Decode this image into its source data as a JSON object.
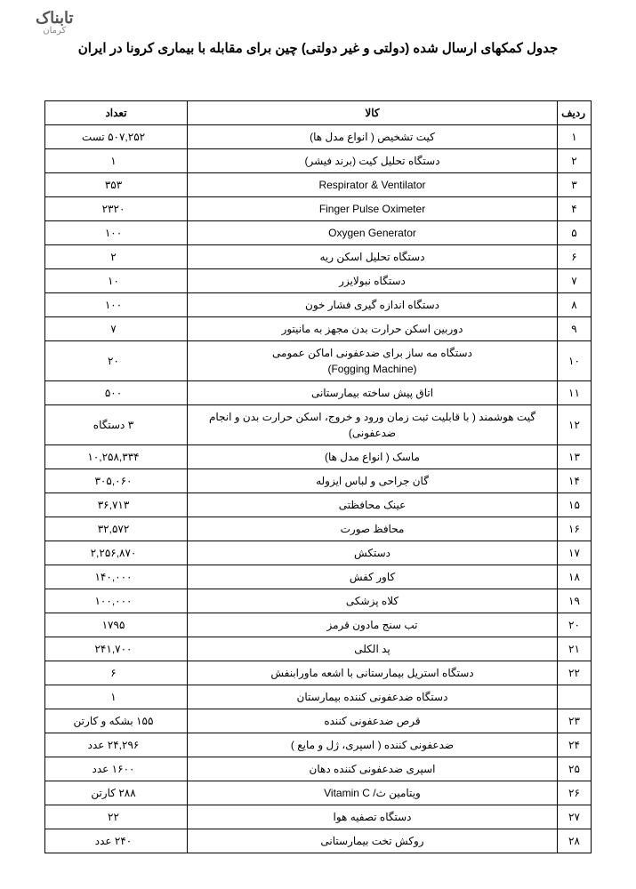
{
  "watermark_main": "تابناک",
  "watermark_sub": "کرمان",
  "title": "جدول کمکهای ارسال شده (دولتی و غیر دولتی) چین برای مقابله با بیماری کرونا در ایران",
  "columns": {
    "idx": "ردیف",
    "item": "کالا",
    "qty": "تعداد"
  },
  "rows": [
    {
      "n": "۱",
      "item": "کیت تشخیص ( انواع مدل ها)",
      "qty": "۵۰۷,۲۵۲ تست"
    },
    {
      "n": "۲",
      "item": "دستگاه تحلیل کیت (برند فیشر)",
      "qty": "۱"
    },
    {
      "n": "۳",
      "item": "Respirator & Ventilator",
      "qty": "۳۵۳"
    },
    {
      "n": "۴",
      "item": "Finger Pulse Oximeter",
      "qty": "۲۳۲۰"
    },
    {
      "n": "۵",
      "item": "Oxygen Generator",
      "qty": "۱۰۰"
    },
    {
      "n": "۶",
      "item": "دستگاه تحلیل اسکن ریه",
      "qty": "۲"
    },
    {
      "n": "۷",
      "item": "دستگاه نبولایزر",
      "qty": "۱۰"
    },
    {
      "n": "۸",
      "item": "دستگاه اندازه گیری فشار خون",
      "qty": "۱۰۰"
    },
    {
      "n": "۹",
      "item": "دوربین اسکن حرارت بدن مجهز به مانیتور",
      "qty": "۷"
    },
    {
      "n": "۱۰",
      "item": "دستگاه مه ساز برای ضدعفونی اماکن عمومی\n(Fogging Machine)",
      "qty": "۲۰"
    },
    {
      "n": "۱۱",
      "item": "اتاق پیش ساخته بیمارستانی",
      "qty": "۵۰۰"
    },
    {
      "n": "۱۲",
      "item": "گیت هوشمند ( با قابلیت ثبت زمان ورود و خروج، اسکن حرارت بدن و انجام ضدعفونی)",
      "qty": "۳ دستگاه"
    },
    {
      "n": "۱۳",
      "item": "ماسک ( انواع مدل ها)",
      "qty": "۱۰,۲۵۸,۳۳۴"
    },
    {
      "n": "۱۴",
      "item": "گان جراحی و لباس ایزوله",
      "qty": "۳۰۵,۰۶۰"
    },
    {
      "n": "۱۵",
      "item": "عینک محافظتی",
      "qty": "۳۶,۷۱۳"
    },
    {
      "n": "۱۶",
      "item": "محافظ صورت",
      "qty": "۳۲,۵۷۲"
    },
    {
      "n": "۱۷",
      "item": "دستکش",
      "qty": "۲,۲۵۶,۸۷۰"
    },
    {
      "n": "۱۸",
      "item": "کاور کفش",
      "qty": "۱۴۰,۰۰۰"
    },
    {
      "n": "۱۹",
      "item": "کلاه پزشکی",
      "qty": "۱۰۰,۰۰۰"
    },
    {
      "n": "۲۰",
      "item": "تب سنج مادون قرمز",
      "qty": "۱۷۹۵"
    },
    {
      "n": "۲۱",
      "item": "پد الکلی",
      "qty": "۲۴۱,۷۰۰"
    },
    {
      "n": "۲۲",
      "item": "دستگاه استریل بیمارستانی با اشعه ماورابنفش",
      "qty": "۶"
    },
    {
      "n": "",
      "item": "دستگاه ضدعفونی کننده بیمارستان",
      "qty": "۱"
    },
    {
      "n": "۲۳",
      "item": "قرص ضدعفونی کننده",
      "qty": "۱۵۵ بشکه و کارتن"
    },
    {
      "n": "۲۴",
      "item": "ضدعفونی کننده ( اسپری، ژل و مایع )",
      "qty": "۲۴,۲۹۶ عدد"
    },
    {
      "n": "۲۵",
      "item": "اسپری ضدعفونی کننده دهان",
      "qty": "۱۶۰۰ عدد"
    },
    {
      "n": "۲۶",
      "item": "ویتامین ث/ Vitamin C",
      "qty": "۲۸۸ کارتن"
    },
    {
      "n": "۲۷",
      "item": "دستگاه تصفیه هوا",
      "qty": "۲۲"
    },
    {
      "n": "۲۸",
      "item": "روکش تخت بیمارستانی",
      "qty": "۲۴۰ عدد"
    }
  ]
}
